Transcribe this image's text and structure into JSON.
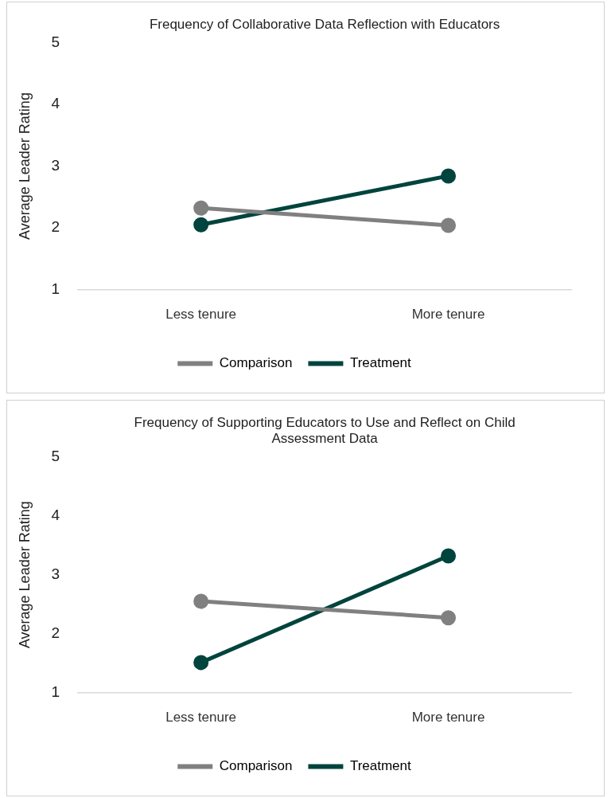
{
  "chart_data": [
    {
      "type": "line",
      "title": "Frequency of Collaborative Data Reflection with Educators",
      "ylabel": "Average Leader Rating",
      "categories": [
        "Less tenure",
        "More tenure"
      ],
      "series": [
        {
          "name": "Comparison",
          "color": "#808080",
          "values": [
            2.32,
            2.04
          ]
        },
        {
          "name": "Treatment",
          "color": "#00443d",
          "values": [
            2.05,
            2.84
          ]
        }
      ],
      "ylim": [
        1,
        5
      ],
      "yticks": [
        1,
        2,
        3,
        4,
        5
      ],
      "grid": false,
      "legend": "bottom",
      "marker": "circle",
      "line_style": "solid"
    },
    {
      "type": "line",
      "title": "Frequency of Supporting Educators to Use and Reflect on Child Assessment Data",
      "ylabel": "Average Leader Rating",
      "categories": [
        "Less tenure",
        "More tenure"
      ],
      "series": [
        {
          "name": "Comparison",
          "color": "#808080",
          "values": [
            2.55,
            2.27
          ]
        },
        {
          "name": "Treatment",
          "color": "#00443d",
          "values": [
            1.51,
            3.32
          ]
        }
      ],
      "ylim": [
        1,
        5
      ],
      "yticks": [
        1,
        2,
        3,
        4,
        5
      ],
      "grid": false,
      "legend": "bottom",
      "marker": "circle",
      "line_style": "solid"
    }
  ]
}
